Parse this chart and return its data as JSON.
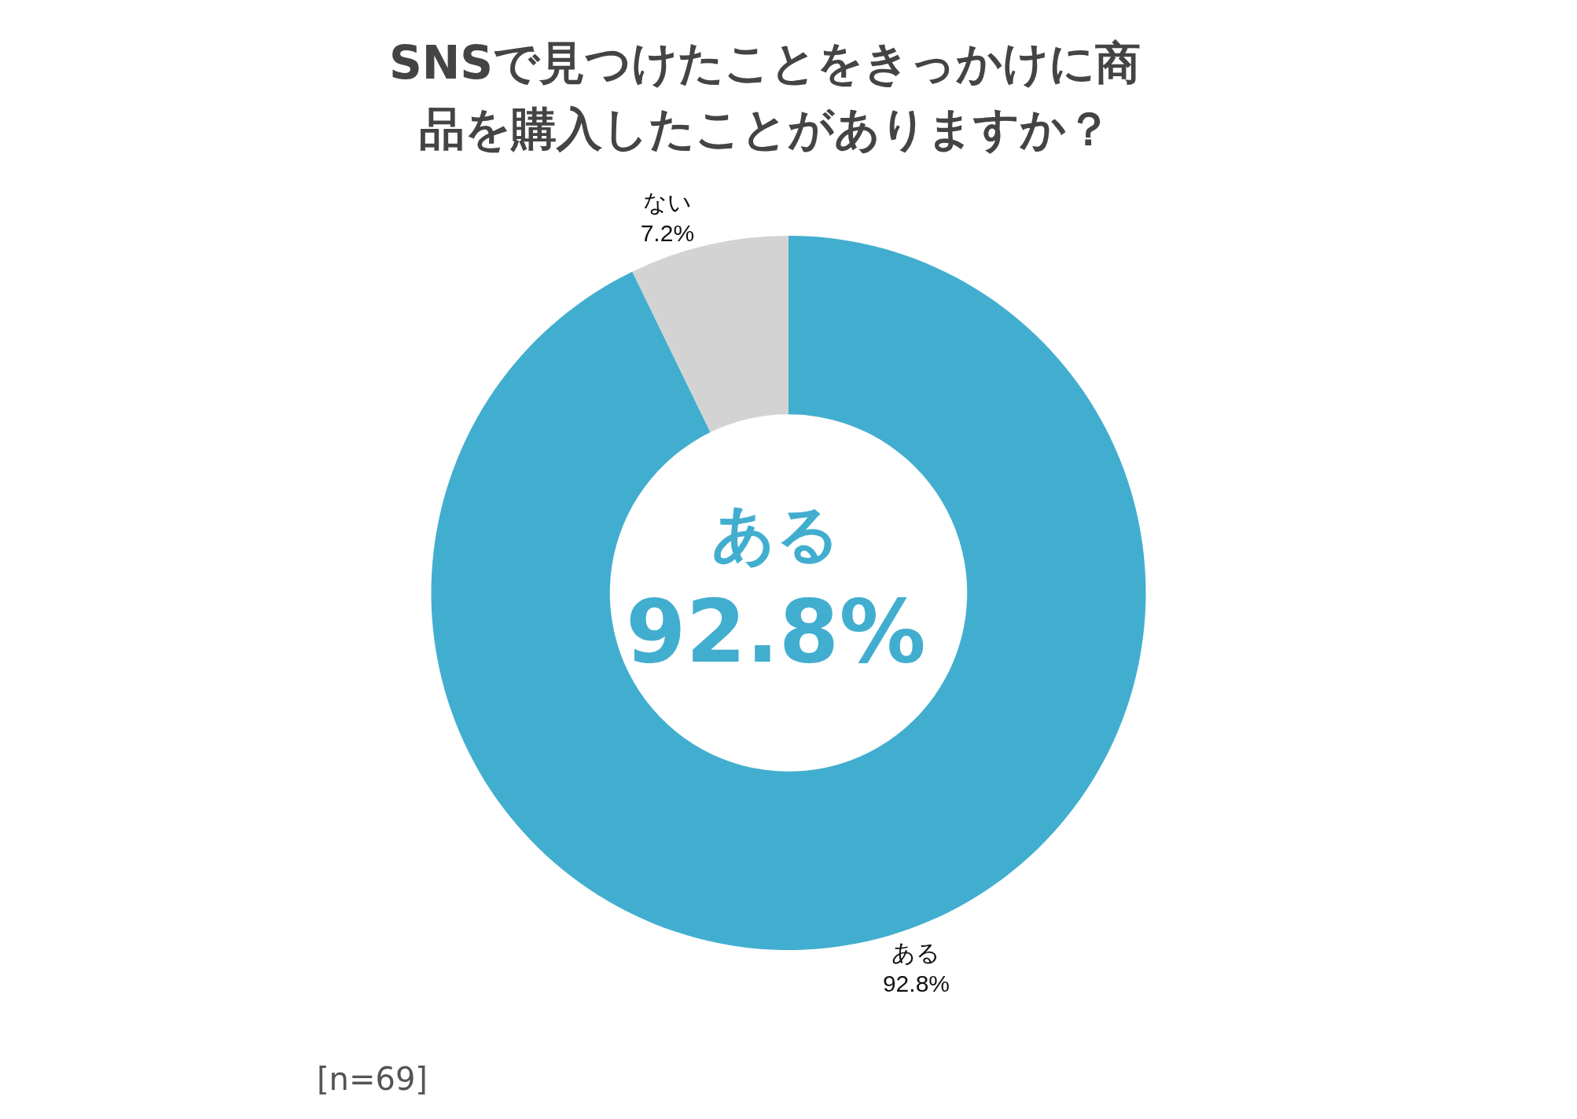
{
  "chart_data": {
    "type": "donut",
    "title": "SNSで見つけたことをきっかけに商品を購入したことがありますか？",
    "categories": [
      "ある",
      "ない"
    ],
    "values": [
      92.8,
      7.2
    ],
    "value_labels": [
      "92.8%",
      "7.2%"
    ],
    "colors": [
      "#42aecf",
      "#d3d3d3"
    ],
    "legend": false,
    "annotations": [
      "ある",
      "92.8%",
      "[n=69]"
    ]
  }
}
